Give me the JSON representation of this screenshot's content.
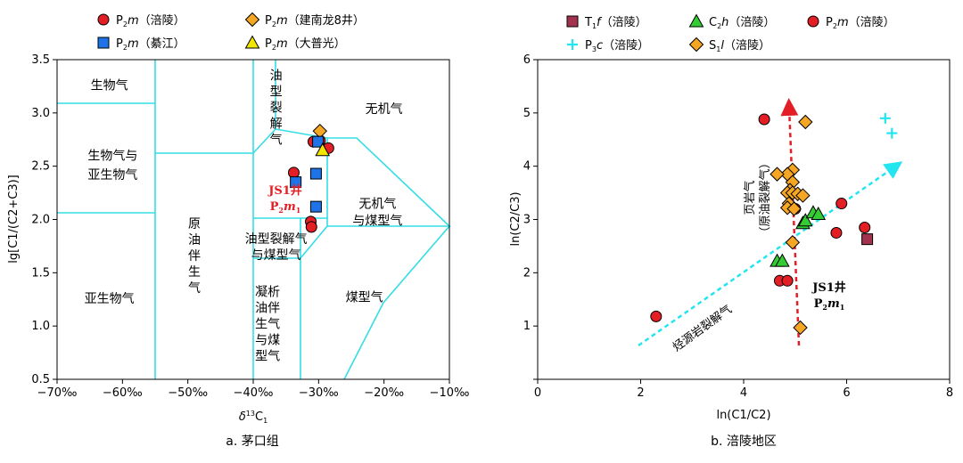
{
  "chart_data": [
    {
      "type": "scatter",
      "panel_caption": "a. 茅口组",
      "xlabel_prefix": "δ",
      "xlabel_sup": "13",
      "xlabel_main": "C",
      "xlabel_sub": "1",
      "ylabel": "lg[C1/(C2+C3)]",
      "xlim": [
        -70,
        -10
      ],
      "ylim": [
        0.5,
        3.5
      ],
      "x_ticks": [
        -70,
        -60,
        -50,
        -40,
        -30,
        -20,
        -10
      ],
      "x_tick_labels": [
        "−70‰",
        "−60‰",
        "−50‰",
        "−40‰",
        "−30‰",
        "−20‰",
        "−10‰"
      ],
      "y_ticks": [
        0.5,
        1.0,
        1.5,
        2.0,
        2.5,
        3.0,
        3.5
      ],
      "y_tick_labels": [
        "0.5",
        "1.0",
        "1.5",
        "2.0",
        "2.5",
        "3.0",
        "3.5"
      ],
      "region_labels": [
        {
          "text": "生物气",
          "x": -62,
          "y": 3.22
        },
        {
          "text": "生物气与",
          "x": -61.5,
          "y": 2.56
        },
        {
          "text": "亚生物气",
          "x": -61.5,
          "y": 2.38
        },
        {
          "text": "原",
          "x": -49,
          "y": 1.92
        },
        {
          "text": "油",
          "x": -49,
          "y": 1.77
        },
        {
          "text": "伴",
          "x": -49,
          "y": 1.62
        },
        {
          "text": "生",
          "x": -49,
          "y": 1.47
        },
        {
          "text": "气",
          "x": -49,
          "y": 1.32
        },
        {
          "text": "亚生物气",
          "x": -62,
          "y": 1.22
        },
        {
          "text": "油",
          "x": -36.5,
          "y": 3.31
        },
        {
          "text": "型",
          "x": -36.5,
          "y": 3.16
        },
        {
          "text": "裂",
          "x": -36.5,
          "y": 3.01
        },
        {
          "text": "解",
          "x": -36.5,
          "y": 2.86
        },
        {
          "text": "气",
          "x": -36.5,
          "y": 2.71
        },
        {
          "text": "无机气",
          "x": -20,
          "y": 3.0
        },
        {
          "text": "无机气",
          "x": -21,
          "y": 2.11
        },
        {
          "text": "与煤型气",
          "x": -21,
          "y": 1.95
        },
        {
          "text": "油型裂解气",
          "x": -36.5,
          "y": 1.78
        },
        {
          "text": "与煤型气",
          "x": -36.5,
          "y": 1.63
        },
        {
          "text": "凝析",
          "x": -37.8,
          "y": 1.28
        },
        {
          "text": "油伴",
          "x": -37.8,
          "y": 1.13
        },
        {
          "text": "生气",
          "x": -37.8,
          "y": 0.98
        },
        {
          "text": "与煤",
          "x": -37.8,
          "y": 0.83
        },
        {
          "text": "型气",
          "x": -37.8,
          "y": 0.68
        },
        {
          "text": "煤型气",
          "x": -23,
          "y": 1.23
        }
      ],
      "annotation": {
        "line1": "JS1井",
        "line2_main": "P",
        "line2_sub": "2",
        "line2_italic": "m",
        "line2_sub2": "1",
        "x": -35,
        "y": 2.11
      },
      "legend": [
        {
          "marker": "circle",
          "color": "#e31e24",
          "label_main": "P",
          "label_sub": "2",
          "label_italic": "m",
          "label_rest": "（涪陵）"
        },
        {
          "marker": "diamond",
          "color": "#f5a623",
          "label_main": "P",
          "label_sub": "2",
          "label_italic": "m",
          "label_rest": "（建南龙8井）"
        },
        {
          "marker": "square",
          "color": "#1e73e8",
          "label_main": "P",
          "label_sub": "2",
          "label_italic": "m",
          "label_rest": "（綦江）"
        },
        {
          "marker": "triangle",
          "color": "#f2e600",
          "label_main": "P",
          "label_sub": "2",
          "label_italic": "m",
          "label_rest": "（大普光）"
        }
      ],
      "series": [
        {
          "name": "P2m（涪陵）",
          "marker": "circle",
          "color": "#e31e24",
          "points": [
            [
              -33.8,
              2.44
            ],
            [
              -30.8,
              2.73
            ],
            [
              -29.8,
              2.74
            ],
            [
              -28.5,
              2.67
            ],
            [
              -31.2,
              1.98
            ],
            [
              -31.1,
              1.93
            ]
          ]
        },
        {
          "name": "P2m（建南龙8井）",
          "marker": "diamond",
          "color": "#f5a623",
          "points": [
            [
              -29.8,
              2.83
            ]
          ]
        },
        {
          "name": "P2m（綦江）",
          "marker": "square",
          "color": "#1e73e8",
          "points": [
            [
              -33.5,
              2.35
            ],
            [
              -30.4,
              2.43
            ],
            [
              -30.4,
              2.12
            ],
            [
              -30.1,
              2.73
            ]
          ]
        },
        {
          "name": "P2m（大普光）",
          "marker": "triangle",
          "color": "#f2e600",
          "points": [
            [
              -29.4,
              2.65
            ]
          ]
        }
      ]
    },
    {
      "type": "scatter",
      "panel_caption": "b. 涪陵地区",
      "xlabel": "ln(C1/C2)",
      "ylabel": "ln(C2/C3)",
      "xlim": [
        0,
        8
      ],
      "ylim": [
        0,
        6
      ],
      "x_ticks": [
        0,
        2,
        4,
        6,
        8
      ],
      "x_tick_labels": [
        "0",
        "2",
        "4",
        "6",
        "8"
      ],
      "y_ticks": [
        0,
        1,
        2,
        3,
        4,
        5,
        6
      ],
      "y_tick_labels": [
        "",
        "1",
        "2",
        "3",
        "4",
        "5",
        "6"
      ],
      "trend_labels": {
        "kerogen_line1": "页岩气",
        "kerogen_line2": "（原油裂解气）",
        "source_rock": "烃源岩裂解气"
      },
      "annotation": {
        "line1": "JS1井",
        "line2_main": "P",
        "line2_sub": "2",
        "line2_italic": "m",
        "line2_sub2": "1"
      },
      "legend": [
        {
          "marker": "square",
          "color": "#a3324f",
          "label_main": "T",
          "label_sub": "1",
          "label_italic": "f",
          "label_rest": "（涪陵）"
        },
        {
          "marker": "triangle",
          "color": "#33cc33",
          "label_main": "C",
          "label_sub": "2",
          "label_italic": "h",
          "label_rest": "（涪陵）"
        },
        {
          "marker": "circle",
          "color": "#e31e24",
          "label_main": "P",
          "label_sub": "2",
          "label_italic": "m",
          "label_rest": "（涪陵）"
        },
        {
          "marker": "plus",
          "color": "#22e5f0",
          "label_main": "P",
          "label_sub": "3",
          "label_italic": "c",
          "label_rest": "（涪陵）"
        },
        {
          "marker": "diamond",
          "color": "#f5a623",
          "label_main": "S",
          "label_sub": "1",
          "label_italic": "l",
          "label_rest": "（涪陵）"
        }
      ],
      "series": [
        {
          "name": "T1f（涪陵）",
          "marker": "square",
          "color": "#a3324f",
          "points": [
            [
              6.4,
              2.63
            ]
          ]
        },
        {
          "name": "C2h（涪陵）",
          "marker": "triangle",
          "color": "#33cc33",
          "points": [
            [
              4.65,
              2.22
            ],
            [
              4.75,
              2.22
            ],
            [
              5.15,
              2.93
            ],
            [
              5.2,
              2.98
            ],
            [
              5.35,
              3.13
            ],
            [
              5.45,
              3.1
            ]
          ]
        },
        {
          "name": "P2m（涪陵）",
          "marker": "circle",
          "color": "#e31e24",
          "points": [
            [
              2.3,
              1.18
            ],
            [
              4.4,
              4.88
            ],
            [
              4.7,
              1.85
            ],
            [
              4.85,
              1.85
            ],
            [
              5.0,
              3.2
            ],
            [
              5.8,
              2.75
            ],
            [
              5.9,
              3.3
            ],
            [
              6.35,
              2.85
            ]
          ]
        },
        {
          "name": "P3c（涪陵）",
          "marker": "plus",
          "color": "#22e5f0",
          "points": [
            [
              6.75,
              4.9
            ],
            [
              6.88,
              4.62
            ]
          ]
        },
        {
          "name": "S1l（涪陵）",
          "marker": "diamond",
          "color": "#f5a623",
          "points": [
            [
              5.2,
              4.83
            ],
            [
              4.95,
              3.93
            ],
            [
              4.85,
              3.85
            ],
            [
              4.65,
              3.85
            ],
            [
              4.95,
              3.7
            ],
            [
              4.9,
              3.55
            ],
            [
              4.85,
              3.5
            ],
            [
              4.95,
              3.5
            ],
            [
              5.05,
              3.48
            ],
            [
              5.15,
              3.45
            ],
            [
              4.88,
              3.3
            ],
            [
              4.85,
              3.22
            ],
            [
              4.98,
              3.2
            ],
            [
              4.95,
              2.57
            ],
            [
              5.1,
              0.97
            ]
          ]
        }
      ]
    }
  ]
}
